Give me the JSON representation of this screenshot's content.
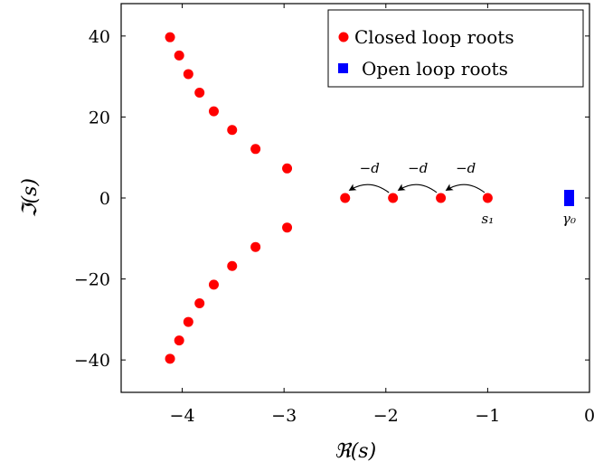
{
  "chart_data": {
    "type": "scatter",
    "xlabel": "ℜ(s)",
    "ylabel": "ℑ(s)",
    "xlim": [
      -4.6,
      0
    ],
    "ylim": [
      -48,
      48
    ],
    "grid": false,
    "legend_position": "top-right",
    "x_ticks": [
      -4,
      -3,
      -2,
      -1,
      0
    ],
    "y_ticks": [
      -40,
      -20,
      0,
      20,
      40
    ],
    "x_tick_labels": [
      "−4",
      "−3",
      "−2",
      "−1",
      "0"
    ],
    "y_tick_labels": [
      "−40",
      "−20",
      "0",
      "20",
      "40"
    ],
    "series": [
      {
        "name": "Closed loop roots",
        "color": "#ff0000",
        "marker": "circle",
        "points": [
          [
            -4.12,
            39.7
          ],
          [
            -4.03,
            35.2
          ],
          [
            -3.94,
            30.6
          ],
          [
            -3.83,
            26.0
          ],
          [
            -3.69,
            21.4
          ],
          [
            -3.51,
            16.8
          ],
          [
            -3.28,
            12.1
          ],
          [
            -2.97,
            7.3
          ],
          [
            -4.12,
            -39.7
          ],
          [
            -4.03,
            -35.2
          ],
          [
            -3.94,
            -30.6
          ],
          [
            -3.83,
            -26.0
          ],
          [
            -3.69,
            -21.4
          ],
          [
            -3.51,
            -16.8
          ],
          [
            -3.28,
            -12.1
          ],
          [
            -2.97,
            -7.3
          ],
          [
            -2.4,
            0
          ],
          [
            -1.93,
            0
          ],
          [
            -1.46,
            0
          ],
          [
            -1.0,
            0
          ]
        ]
      },
      {
        "name": "Open loop roots",
        "color": "#0000ff",
        "marker": "square",
        "points": [
          [
            -0.2,
            0
          ]
        ]
      }
    ],
    "annotations": [
      {
        "text": "−d",
        "from": [
          -1.03,
          0
        ],
        "to": [
          -1.4,
          0
        ]
      },
      {
        "text": "−d",
        "from": [
          -1.5,
          0
        ],
        "to": [
          -1.87,
          0
        ]
      },
      {
        "text": "−d",
        "from": [
          -1.97,
          0
        ],
        "to": [
          -2.35,
          0
        ]
      }
    ],
    "point_labels": [
      {
        "text": "s₁",
        "at": [
          -1.0,
          0
        ]
      },
      {
        "text": "γ₀",
        "at": [
          -0.2,
          0
        ]
      }
    ]
  }
}
